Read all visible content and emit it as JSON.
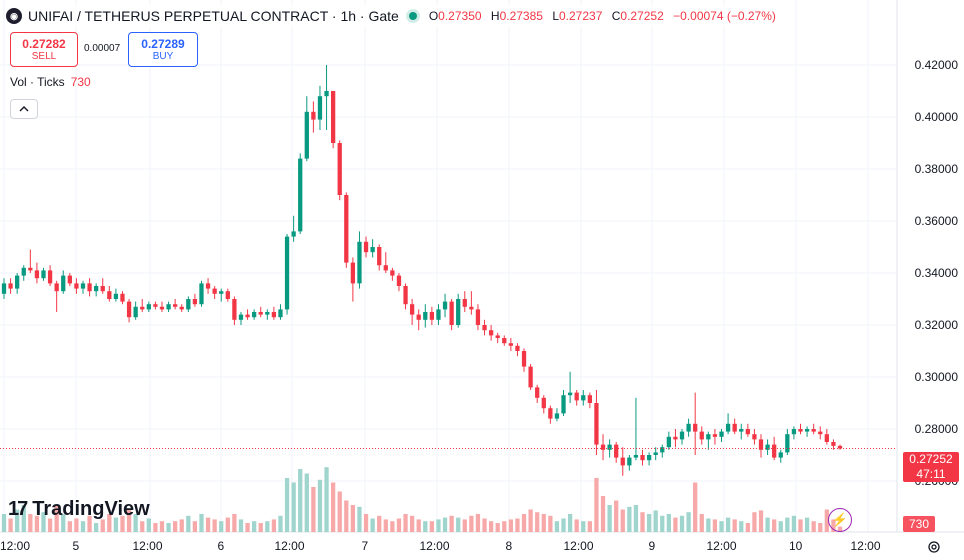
{
  "header": {
    "symbol_title": "UNIFAI / TETHERUS PERPETUAL CONTRACT · 1h · Gate",
    "ohlc": [
      {
        "label": "O",
        "value": "0.27350"
      },
      {
        "label": "H",
        "value": "0.27385"
      },
      {
        "label": "L",
        "value": "0.27237"
      },
      {
        "label": "C",
        "value": "0.27252"
      }
    ],
    "change": "−0.00074 (−0.27%)"
  },
  "trade": {
    "sell_price": "0.27282",
    "sell_label": "SELL",
    "spread": "0.00007",
    "buy_price": "0.27289",
    "buy_label": "BUY"
  },
  "volume_indicator": {
    "label": "Vol · Ticks",
    "value": "730"
  },
  "logo_text": "TradingView",
  "colors": {
    "up": "#089981",
    "down": "#f23645",
    "up_vol": "#9fd5cd",
    "down_vol": "#f7a9a9",
    "accent": "#2962ff"
  },
  "icons": {
    "symbol": "unifai-logo-icon",
    "collapse": "chevron-up-icon",
    "lightning": "lightning-icon",
    "settings": "gear-icon"
  },
  "price_axis": [
    "0.42000",
    "0.40000",
    "0.38000",
    "0.36000",
    "0.34000",
    "0.32000",
    "0.30000",
    "0.28000",
    "0.26000"
  ],
  "time_axis": [
    "12:00",
    "5",
    "12:00",
    "6",
    "12:00",
    "7",
    "12:00",
    "8",
    "12:00",
    "9",
    "12:00",
    "10",
    "12:00"
  ],
  "current_price": {
    "value": "0.27252",
    "countdown": "47:11"
  },
  "current_volume": "730",
  "chart_data": {
    "type": "candlestick",
    "ylim": [
      0.255,
      0.425
    ],
    "grid": true,
    "price_ticks": [
      0.42,
      0.4,
      0.38,
      0.36,
      0.34,
      0.32,
      0.3,
      0.28,
      0.26
    ],
    "volume_scale_max": 100,
    "candles": [
      [
        0.332,
        0.338,
        0.33,
        0.336,
        20
      ],
      [
        0.336,
        0.338,
        0.332,
        0.334,
        15
      ],
      [
        0.334,
        0.34,
        0.332,
        0.339,
        25
      ],
      [
        0.339,
        0.343,
        0.337,
        0.342,
        30
      ],
      [
        0.342,
        0.349,
        0.34,
        0.341,
        20
      ],
      [
        0.341,
        0.344,
        0.336,
        0.338,
        18
      ],
      [
        0.338,
        0.342,
        0.337,
        0.341,
        22
      ],
      [
        0.341,
        0.343,
        0.335,
        0.336,
        15
      ],
      [
        0.336,
        0.337,
        0.325,
        0.333,
        30
      ],
      [
        0.333,
        0.341,
        0.332,
        0.339,
        20
      ],
      [
        0.339,
        0.34,
        0.335,
        0.336,
        12
      ],
      [
        0.336,
        0.338,
        0.332,
        0.334,
        15
      ],
      [
        0.334,
        0.337,
        0.332,
        0.336,
        12
      ],
      [
        0.336,
        0.338,
        0.331,
        0.333,
        18
      ],
      [
        0.333,
        0.336,
        0.331,
        0.335,
        10
      ],
      [
        0.335,
        0.338,
        0.332,
        0.333,
        14
      ],
      [
        0.333,
        0.335,
        0.329,
        0.33,
        20
      ],
      [
        0.33,
        0.334,
        0.329,
        0.332,
        16
      ],
      [
        0.332,
        0.333,
        0.328,
        0.329,
        18
      ],
      [
        0.329,
        0.33,
        0.321,
        0.323,
        25
      ],
      [
        0.323,
        0.329,
        0.322,
        0.327,
        20
      ],
      [
        0.327,
        0.33,
        0.325,
        0.326,
        12
      ],
      [
        0.326,
        0.329,
        0.325,
        0.328,
        15
      ],
      [
        0.328,
        0.329,
        0.326,
        0.327,
        10
      ],
      [
        0.327,
        0.329,
        0.325,
        0.326,
        12
      ],
      [
        0.326,
        0.329,
        0.325,
        0.328,
        10
      ],
      [
        0.328,
        0.33,
        0.326,
        0.327,
        12
      ],
      [
        0.327,
        0.328,
        0.325,
        0.326,
        14
      ],
      [
        0.326,
        0.331,
        0.325,
        0.33,
        18
      ],
      [
        0.33,
        0.332,
        0.327,
        0.328,
        12
      ],
      [
        0.328,
        0.337,
        0.327,
        0.336,
        20
      ],
      [
        0.336,
        0.338,
        0.332,
        0.334,
        16
      ],
      [
        0.334,
        0.335,
        0.33,
        0.332,
        14
      ],
      [
        0.332,
        0.334,
        0.329,
        0.333,
        12
      ],
      [
        0.333,
        0.334,
        0.329,
        0.33,
        16
      ],
      [
        0.33,
        0.331,
        0.32,
        0.322,
        20
      ],
      [
        0.322,
        0.325,
        0.32,
        0.324,
        14
      ],
      [
        0.324,
        0.326,
        0.322,
        0.323,
        10
      ],
      [
        0.323,
        0.326,
        0.322,
        0.325,
        12
      ],
      [
        0.325,
        0.327,
        0.323,
        0.324,
        10
      ],
      [
        0.324,
        0.326,
        0.322,
        0.325,
        12
      ],
      [
        0.325,
        0.327,
        0.322,
        0.323,
        14
      ],
      [
        0.323,
        0.328,
        0.322,
        0.326,
        18
      ],
      [
        0.326,
        0.355,
        0.324,
        0.354,
        60
      ],
      [
        0.354,
        0.362,
        0.352,
        0.356,
        55
      ],
      [
        0.356,
        0.386,
        0.355,
        0.384,
        70
      ],
      [
        0.384,
        0.408,
        0.383,
        0.402,
        65
      ],
      [
        0.402,
        0.406,
        0.394,
        0.399,
        50
      ],
      [
        0.399,
        0.412,
        0.395,
        0.408,
        58
      ],
      [
        0.408,
        0.42,
        0.395,
        0.41,
        72
      ],
      [
        0.41,
        0.41,
        0.388,
        0.39,
        55
      ],
      [
        0.39,
        0.391,
        0.368,
        0.37,
        45
      ],
      [
        0.37,
        0.371,
        0.342,
        0.344,
        35
      ],
      [
        0.344,
        0.346,
        0.329,
        0.336,
        30
      ],
      [
        0.336,
        0.356,
        0.334,
        0.352,
        28
      ],
      [
        0.352,
        0.354,
        0.346,
        0.348,
        20
      ],
      [
        0.348,
        0.353,
        0.346,
        0.35,
        15
      ],
      [
        0.35,
        0.351,
        0.341,
        0.343,
        18
      ],
      [
        0.343,
        0.348,
        0.34,
        0.341,
        14
      ],
      [
        0.341,
        0.342,
        0.337,
        0.339,
        12
      ],
      [
        0.339,
        0.34,
        0.333,
        0.335,
        15
      ],
      [
        0.335,
        0.336,
        0.326,
        0.328,
        20
      ],
      [
        0.328,
        0.33,
        0.32,
        0.324,
        18
      ],
      [
        0.324,
        0.326,
        0.318,
        0.322,
        14
      ],
      [
        0.322,
        0.328,
        0.319,
        0.325,
        12
      ],
      [
        0.325,
        0.327,
        0.32,
        0.322,
        12
      ],
      [
        0.322,
        0.328,
        0.32,
        0.326,
        14
      ],
      [
        0.326,
        0.332,
        0.323,
        0.329,
        16
      ],
      [
        0.329,
        0.33,
        0.318,
        0.32,
        18
      ],
      [
        0.32,
        0.332,
        0.319,
        0.33,
        16
      ],
      [
        0.33,
        0.333,
        0.325,
        0.327,
        14
      ],
      [
        0.327,
        0.333,
        0.324,
        0.326,
        18
      ],
      [
        0.326,
        0.328,
        0.318,
        0.32,
        20
      ],
      [
        0.32,
        0.322,
        0.316,
        0.318,
        15
      ],
      [
        0.318,
        0.32,
        0.314,
        0.316,
        12
      ],
      [
        0.316,
        0.317,
        0.313,
        0.315,
        10
      ],
      [
        0.315,
        0.316,
        0.312,
        0.313,
        12
      ],
      [
        0.313,
        0.315,
        0.31,
        0.312,
        14
      ],
      [
        0.312,
        0.313,
        0.308,
        0.31,
        15
      ],
      [
        0.31,
        0.311,
        0.302,
        0.304,
        20
      ],
      [
        0.304,
        0.305,
        0.295,
        0.296,
        25
      ],
      [
        0.296,
        0.297,
        0.29,
        0.292,
        22
      ],
      [
        0.292,
        0.293,
        0.286,
        0.288,
        20
      ],
      [
        0.288,
        0.289,
        0.282,
        0.284,
        18
      ],
      [
        0.284,
        0.288,
        0.283,
        0.286,
        12
      ],
      [
        0.286,
        0.295,
        0.285,
        0.293,
        15
      ],
      [
        0.293,
        0.302,
        0.29,
        0.294,
        20
      ],
      [
        0.294,
        0.295,
        0.289,
        0.291,
        14
      ],
      [
        0.291,
        0.295,
        0.289,
        0.293,
        12
      ],
      [
        0.293,
        0.294,
        0.288,
        0.29,
        12
      ],
      [
        0.29,
        0.295,
        0.27,
        0.274,
        60
      ],
      [
        0.274,
        0.278,
        0.268,
        0.272,
        40
      ],
      [
        0.272,
        0.276,
        0.269,
        0.274,
        30
      ],
      [
        0.274,
        0.275,
        0.267,
        0.269,
        35
      ],
      [
        0.269,
        0.273,
        0.262,
        0.266,
        25
      ],
      [
        0.266,
        0.27,
        0.264,
        0.269,
        28
      ],
      [
        0.269,
        0.292,
        0.268,
        0.27,
        30
      ],
      [
        0.27,
        0.272,
        0.266,
        0.268,
        22
      ],
      [
        0.268,
        0.271,
        0.266,
        0.27,
        20
      ],
      [
        0.27,
        0.273,
        0.268,
        0.271,
        24
      ],
      [
        0.271,
        0.274,
        0.269,
        0.273,
        18
      ],
      [
        0.273,
        0.279,
        0.272,
        0.277,
        20
      ],
      [
        0.277,
        0.28,
        0.273,
        0.276,
        16
      ],
      [
        0.276,
        0.28,
        0.274,
        0.279,
        18
      ],
      [
        0.279,
        0.284,
        0.277,
        0.282,
        22
      ],
      [
        0.282,
        0.294,
        0.27,
        0.279,
        55
      ],
      [
        0.279,
        0.281,
        0.274,
        0.276,
        20
      ],
      [
        0.276,
        0.279,
        0.272,
        0.278,
        15
      ],
      [
        0.278,
        0.28,
        0.274,
        0.277,
        14
      ],
      [
        0.277,
        0.28,
        0.275,
        0.279,
        12
      ],
      [
        0.279,
        0.286,
        0.278,
        0.282,
        16
      ],
      [
        0.282,
        0.284,
        0.278,
        0.279,
        14
      ],
      [
        0.279,
        0.282,
        0.276,
        0.28,
        12
      ],
      [
        0.28,
        0.282,
        0.277,
        0.278,
        10
      ],
      [
        0.278,
        0.28,
        0.274,
        0.276,
        22
      ],
      [
        0.276,
        0.278,
        0.269,
        0.272,
        24
      ],
      [
        0.272,
        0.276,
        0.27,
        0.274,
        16
      ],
      [
        0.274,
        0.277,
        0.268,
        0.269,
        14
      ],
      [
        0.269,
        0.272,
        0.267,
        0.271,
        12
      ],
      [
        0.271,
        0.28,
        0.27,
        0.278,
        16
      ],
      [
        0.278,
        0.281,
        0.276,
        0.28,
        18
      ],
      [
        0.28,
        0.282,
        0.278,
        0.279,
        14
      ],
      [
        0.279,
        0.281,
        0.277,
        0.28,
        16
      ],
      [
        0.28,
        0.282,
        0.278,
        0.279,
        12
      ],
      [
        0.279,
        0.281,
        0.276,
        0.278,
        10
      ],
      [
        0.278,
        0.28,
        0.274,
        0.275,
        25
      ],
      [
        0.275,
        0.276,
        0.272,
        0.2735,
        14
      ],
      [
        0.2735,
        0.274,
        0.272,
        0.2725,
        6
      ]
    ]
  }
}
